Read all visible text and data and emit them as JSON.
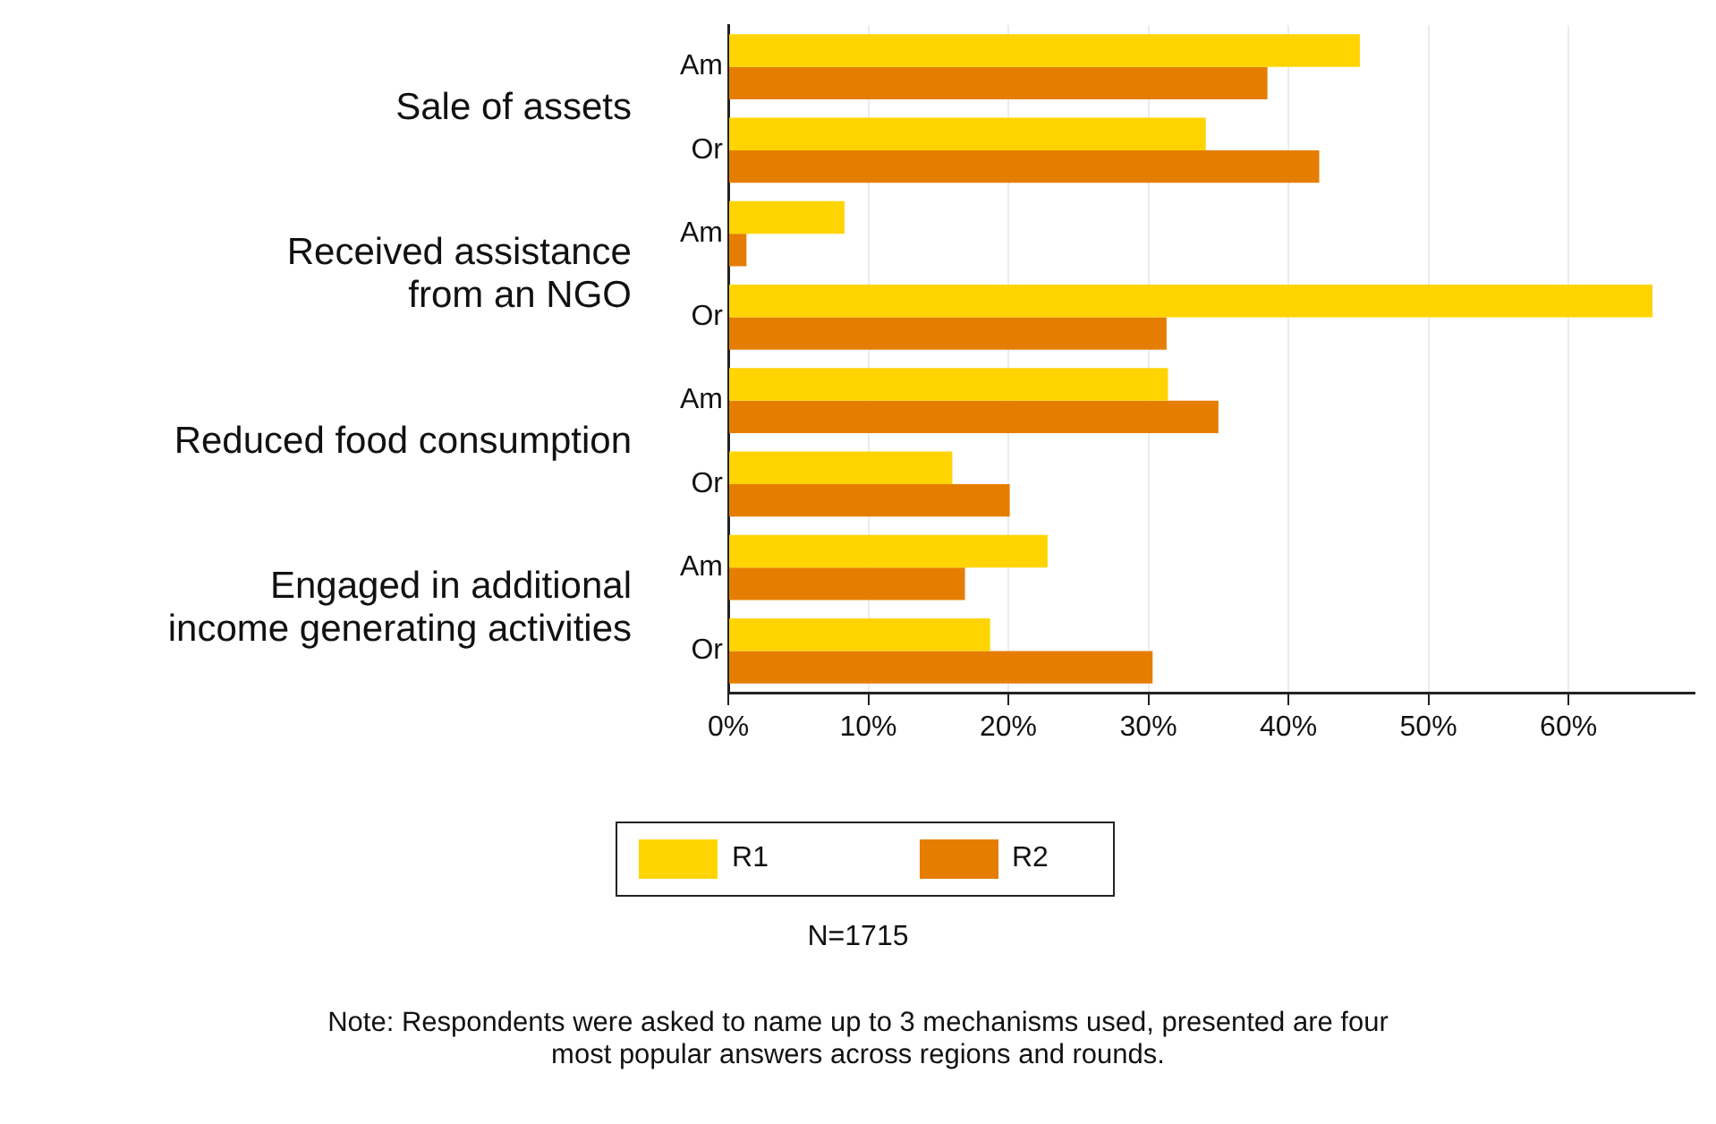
{
  "chart_data": {
    "type": "bar",
    "orientation": "horizontal",
    "categories": [
      "Am",
      "Or",
      "Am",
      "Or",
      "Am",
      "Or",
      "Am",
      "Or"
    ],
    "series": [
      {
        "name": "R1",
        "color": "#ffd400",
        "values": [
          45.1,
          34.1,
          8.3,
          66.0,
          31.4,
          16.0,
          22.8,
          18.7
        ]
      },
      {
        "name": "R2",
        "color": "#e57e00",
        "values": [
          38.5,
          42.2,
          1.3,
          31.3,
          35.0,
          20.1,
          16.9,
          30.3
        ]
      }
    ],
    "xlim": [
      0,
      69
    ],
    "xticks": [
      {
        "value": 0,
        "label": "0%"
      },
      {
        "value": 10,
        "label": "10%"
      },
      {
        "value": 20,
        "label": "20%"
      },
      {
        "value": 30,
        "label": "30%"
      },
      {
        "value": 40,
        "label": "40%"
      },
      {
        "value": 50,
        "label": "50%"
      },
      {
        "value": 60,
        "label": "60%"
      }
    ],
    "grid": "x",
    "legend": "bottom",
    "annotations": [
      "Sale of assets",
      "Received assistance\nfrom an NGO",
      "Reduced food consumption",
      "Engaged in additional\nincome generating activities",
      "N=1715",
      "Note: Respondents were asked to name up to 3 mechanisms used, presented are four\nmost popular answers across regions and rounds."
    ]
  }
}
